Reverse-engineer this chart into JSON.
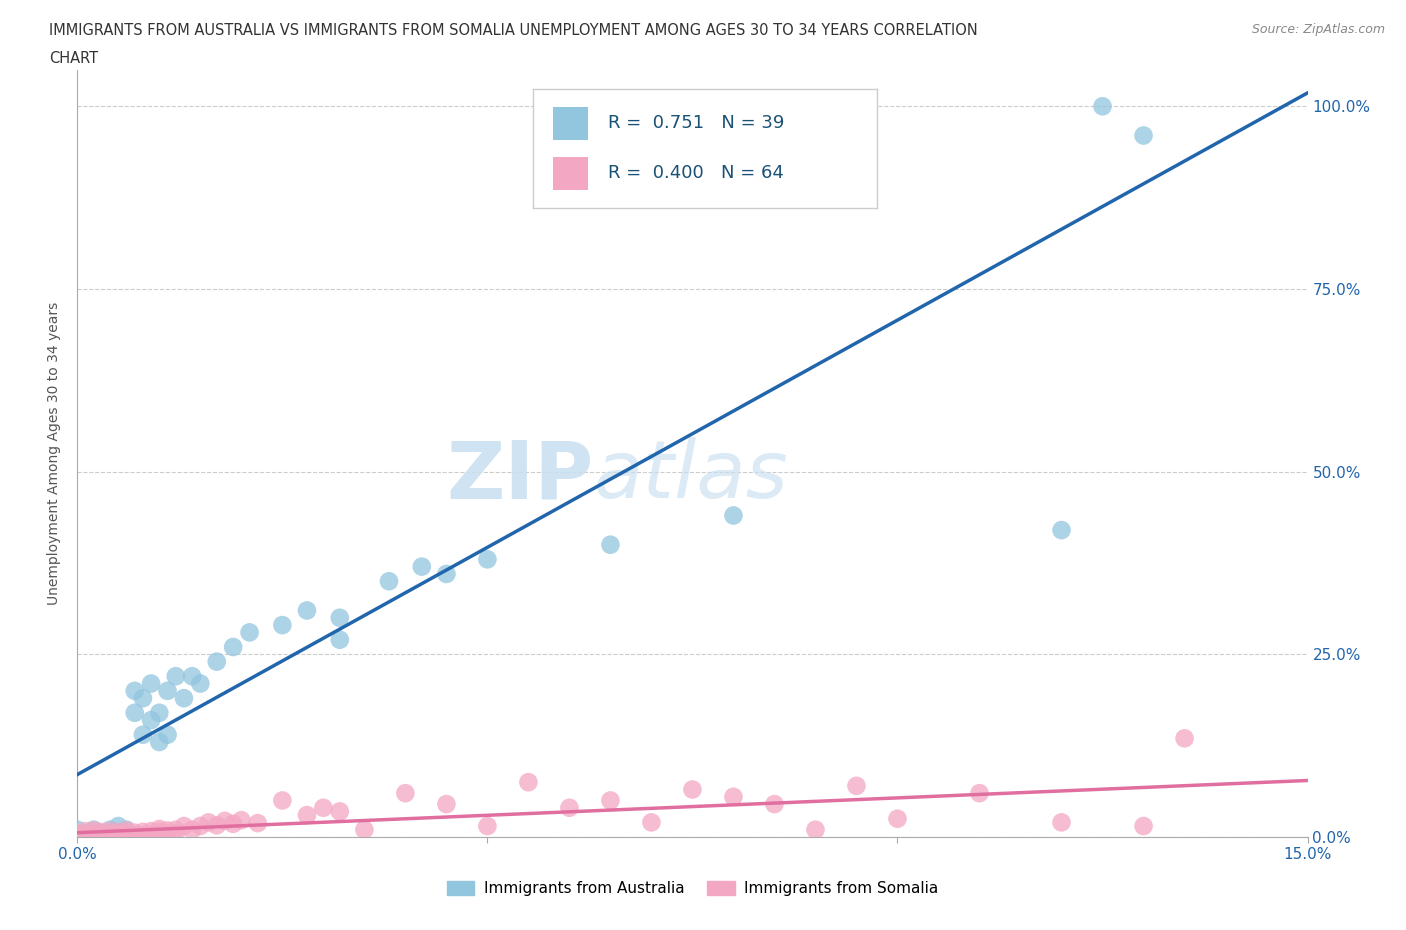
{
  "title_line1": "IMMIGRANTS FROM AUSTRALIA VS IMMIGRANTS FROM SOMALIA UNEMPLOYMENT AMONG AGES 30 TO 34 YEARS CORRELATION",
  "title_line2": "CHART",
  "source": "Source: ZipAtlas.com",
  "ylabel": "Unemployment Among Ages 30 to 34 years",
  "xlim": [
    0.0,
    0.15
  ],
  "ylim": [
    0.0,
    1.05
  ],
  "x_ticks": [
    0.0,
    0.05,
    0.1,
    0.15
  ],
  "x_tick_labels": [
    "0.0%",
    "",
    "",
    "15.0%"
  ],
  "y_ticks": [
    0.0,
    0.25,
    0.5,
    0.75,
    1.0
  ],
  "y_tick_labels": [
    "0.0%",
    "25.0%",
    "50.0%",
    "75.0%",
    "100.0%"
  ],
  "australia_color": "#92c5de",
  "somalia_color": "#f4a7c3",
  "australia_line_color": "#2166ac",
  "somalia_line_color": "#e06fa0",
  "R_australia": 0.751,
  "N_australia": 39,
  "R_somalia": 0.4,
  "N_somalia": 64,
  "watermark_zip": "ZIP",
  "watermark_atlas": "atlas",
  "legend_label_australia": "Immigrants from Australia",
  "legend_label_somalia": "Immigrants from Somalia",
  "australia_scatter_x": [
    0.0,
    0.001,
    0.002,
    0.003,
    0.004,
    0.005,
    0.005,
    0.006,
    0.007,
    0.007,
    0.008,
    0.008,
    0.009,
    0.009,
    0.01,
    0.01,
    0.011,
    0.011,
    0.012,
    0.013,
    0.014,
    0.015,
    0.017,
    0.019,
    0.021,
    0.025,
    0.028,
    0.032,
    0.038,
    0.042,
    0.05,
    0.065,
    0.07,
    0.12,
    0.13,
    0.032,
    0.045,
    0.08,
    0.125
  ],
  "australia_scatter_y": [
    0.01,
    0.005,
    0.01,
    0.005,
    0.01,
    0.005,
    0.015,
    0.01,
    0.17,
    0.2,
    0.14,
    0.19,
    0.16,
    0.21,
    0.13,
    0.17,
    0.14,
    0.2,
    0.22,
    0.19,
    0.22,
    0.21,
    0.24,
    0.26,
    0.28,
    0.29,
    0.31,
    0.3,
    0.35,
    0.37,
    0.38,
    0.4,
    0.98,
    0.42,
    0.96,
    0.27,
    0.36,
    0.44,
    1.0
  ],
  "somalia_scatter_x": [
    0.0,
    0.0,
    0.001,
    0.001,
    0.001,
    0.002,
    0.002,
    0.002,
    0.003,
    0.003,
    0.003,
    0.004,
    0.004,
    0.004,
    0.005,
    0.005,
    0.005,
    0.006,
    0.006,
    0.006,
    0.007,
    0.007,
    0.008,
    0.008,
    0.009,
    0.009,
    0.01,
    0.01,
    0.01,
    0.011,
    0.011,
    0.012,
    0.012,
    0.013,
    0.014,
    0.015,
    0.016,
    0.017,
    0.018,
    0.019,
    0.02,
    0.022,
    0.025,
    0.028,
    0.03,
    0.032,
    0.035,
    0.04,
    0.045,
    0.05,
    0.055,
    0.06,
    0.065,
    0.07,
    0.075,
    0.08,
    0.085,
    0.09,
    0.095,
    0.1,
    0.11,
    0.12,
    0.13,
    0.135
  ],
  "somalia_scatter_y": [
    0.0,
    0.005,
    0.0,
    0.003,
    0.008,
    0.0,
    0.004,
    0.009,
    0.0,
    0.003,
    0.007,
    0.0,
    0.004,
    0.008,
    0.0,
    0.003,
    0.007,
    0.001,
    0.005,
    0.009,
    0.002,
    0.006,
    0.002,
    0.007,
    0.003,
    0.008,
    0.003,
    0.007,
    0.011,
    0.004,
    0.009,
    0.005,
    0.01,
    0.015,
    0.01,
    0.015,
    0.02,
    0.016,
    0.022,
    0.018,
    0.023,
    0.019,
    0.05,
    0.03,
    0.04,
    0.035,
    0.01,
    0.06,
    0.045,
    0.015,
    0.075,
    0.04,
    0.05,
    0.02,
    0.065,
    0.055,
    0.045,
    0.01,
    0.07,
    0.025,
    0.06,
    0.02,
    0.015,
    0.135
  ]
}
